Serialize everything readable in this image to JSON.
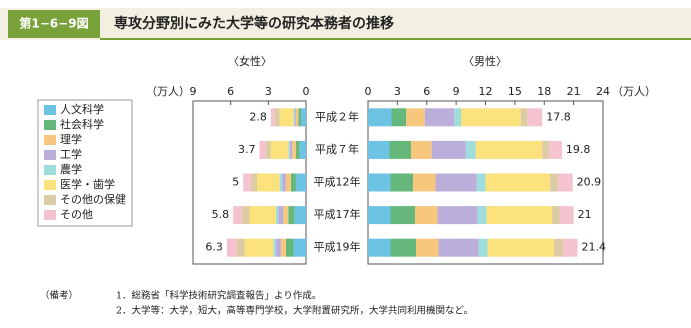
{
  "figure_label": "第1−6−9図",
  "chart_data": {
    "type": "butterfly-bar",
    "title": "専攻分野別にみた大学等の研究本務者の推移",
    "categories": [
      "平成２年",
      "平成７年",
      "平成12年",
      "平成17年",
      "平成19年"
    ],
    "female": {
      "label": "〈女性〉",
      "unit": "（万人）",
      "xlim": [
        0,
        9
      ],
      "xticks": [
        0,
        3,
        6,
        9
      ],
      "totals": [
        2.8,
        3.7,
        5.0,
        5.8,
        6.3
      ]
    },
    "male": {
      "label": "〈男性〉",
      "unit": "（万人）",
      "xlim": [
        0,
        24
      ],
      "xticks": [
        0,
        3,
        6,
        9,
        12,
        15,
        18,
        21,
        24
      ],
      "totals": [
        17.8,
        19.8,
        20.9,
        21.0,
        21.4
      ]
    },
    "series": [
      {
        "name": "人文科学",
        "color": "#6cc3e4",
        "female_values": [
          0.4,
          0.5,
          0.8,
          0.9,
          1.0
        ],
        "male_values": [
          2.4,
          2.2,
          2.3,
          2.3,
          2.3
        ]
      },
      {
        "name": "社会科学",
        "color": "#66b77c",
        "female_values": [
          0.2,
          0.3,
          0.4,
          0.5,
          0.6
        ],
        "male_values": [
          1.5,
          2.2,
          2.3,
          2.5,
          2.6
        ]
      },
      {
        "name": "理学",
        "color": "#f6c77c",
        "female_values": [
          0.2,
          0.3,
          0.4,
          0.4,
          0.4
        ],
        "male_values": [
          1.9,
          2.1,
          2.3,
          2.3,
          2.3
        ]
      },
      {
        "name": "工学",
        "color": "#bcaedb",
        "female_values": [
          0.1,
          0.2,
          0.3,
          0.4,
          0.4
        ],
        "male_values": [
          3.0,
          3.5,
          4.2,
          4.1,
          4.1
        ]
      },
      {
        "name": "農学",
        "color": "#9fdcdc",
        "female_values": [
          0.1,
          0.1,
          0.2,
          0.2,
          0.2
        ],
        "male_values": [
          0.7,
          1.0,
          0.9,
          0.9,
          0.9
        ]
      },
      {
        "name": "医学・歯学",
        "color": "#fbe27c",
        "female_values": [
          1.1,
          1.4,
          1.8,
          2.1,
          2.3
        ],
        "male_values": [
          6.1,
          6.8,
          6.6,
          6.7,
          6.8
        ]
      },
      {
        "name": "その他の保健",
        "color": "#dccba5",
        "female_values": [
          0.4,
          0.4,
          0.5,
          0.6,
          0.6
        ],
        "male_values": [
          0.7,
          0.7,
          0.8,
          0.8,
          0.9
        ]
      },
      {
        "name": "その他",
        "color": "#f5c3cf",
        "female_values": [
          0.3,
          0.5,
          0.6,
          0.7,
          0.8
        ],
        "male_values": [
          1.5,
          1.3,
          1.5,
          1.4,
          1.5
        ]
      }
    ]
  },
  "notes": {
    "heading": "（備考）",
    "items": [
      "1．総務省「科学技術研究調査報告」より作成。",
      "2．大学等：大学，短大，高等専門学校，大学附置研究所，大学共同利用機関など。"
    ]
  }
}
